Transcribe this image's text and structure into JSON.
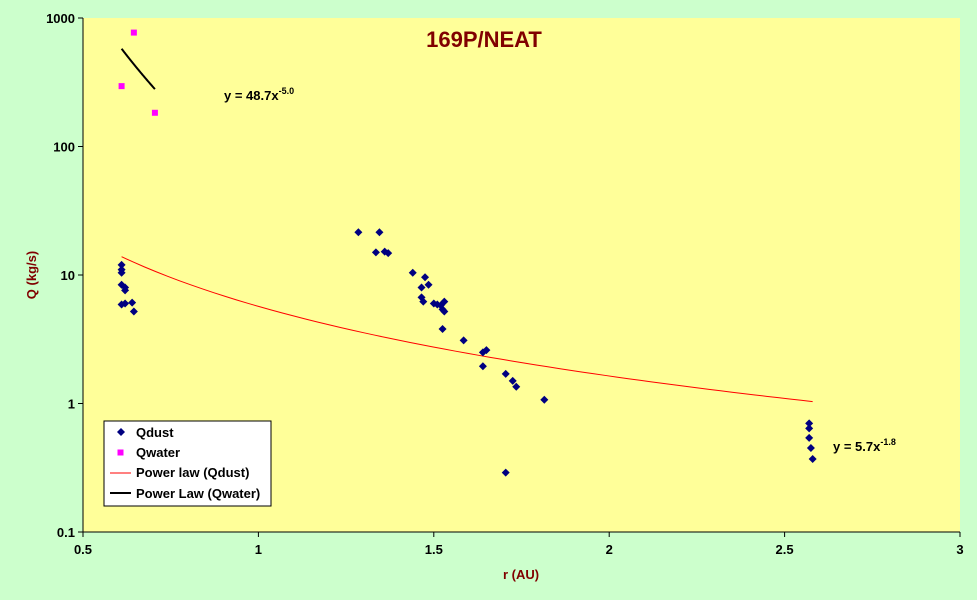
{
  "chart_data": {
    "type": "scatter",
    "title": "169P/NEAT",
    "xlabel": "r (AU)",
    "ylabel": "Q (kg/s)",
    "xlim": [
      0.5,
      3
    ],
    "ylim": [
      0.1,
      1000
    ],
    "yscale": "log",
    "grid": false,
    "x_ticks": [
      "0.5",
      "1",
      "1.5",
      "2",
      "2.5",
      "3"
    ],
    "y_ticks": [
      "0.1",
      "1",
      "10",
      "100",
      "1000"
    ],
    "legend_position": "bottom-left",
    "colors": {
      "plot_background": "#ffff99",
      "page_background": "#ccffcc",
      "qdust": "#000080",
      "qwater": "#ff00ff",
      "power_dust": "#ff0000",
      "power_water": "#000000",
      "title": "#800000"
    },
    "series": [
      {
        "name": "Qdust",
        "kind": "scatter",
        "points": [
          [
            0.61,
            12.0
          ],
          [
            0.61,
            11.0
          ],
          [
            0.61,
            10.4
          ],
          [
            0.61,
            8.4
          ],
          [
            0.62,
            8.0
          ],
          [
            0.62,
            7.6
          ],
          [
            0.61,
            5.9
          ],
          [
            0.62,
            6.0
          ],
          [
            0.64,
            6.1
          ],
          [
            0.645,
            5.2
          ],
          [
            1.285,
            21.5
          ],
          [
            1.335,
            15.0
          ],
          [
            1.345,
            21.5
          ],
          [
            1.36,
            15.2
          ],
          [
            1.37,
            14.8
          ],
          [
            1.44,
            10.4
          ],
          [
            1.465,
            8.0
          ],
          [
            1.465,
            6.7
          ],
          [
            1.47,
            6.2
          ],
          [
            1.475,
            9.6
          ],
          [
            1.485,
            8.4
          ],
          [
            1.5,
            6.0
          ],
          [
            1.51,
            5.9
          ],
          [
            1.52,
            5.8
          ],
          [
            1.525,
            5.4
          ],
          [
            1.53,
            6.2
          ],
          [
            1.53,
            5.2
          ],
          [
            1.525,
            3.8
          ],
          [
            1.585,
            3.1
          ],
          [
            1.64,
            2.5
          ],
          [
            1.65,
            2.6
          ],
          [
            1.64,
            1.95
          ],
          [
            1.705,
            1.7
          ],
          [
            1.725,
            1.5
          ],
          [
            1.735,
            1.35
          ],
          [
            1.705,
            0.29
          ],
          [
            1.815,
            1.07
          ],
          [
            2.57,
            0.7
          ],
          [
            2.57,
            0.64
          ],
          [
            2.57,
            0.54
          ],
          [
            2.575,
            0.45
          ],
          [
            2.58,
            0.37
          ]
        ]
      },
      {
        "name": "Qwater",
        "kind": "scatter",
        "points": [
          [
            0.645,
            770
          ],
          [
            0.61,
            295
          ],
          [
            0.705,
            183
          ]
        ]
      },
      {
        "name": "Power law (Qdust)",
        "kind": "line",
        "equation": "y = 5.7x^-1.8",
        "x_range": [
          0.61,
          2.58
        ]
      },
      {
        "name": "Power Law (Qwater)",
        "kind": "line",
        "equation": "y = 48.7x^-5.0",
        "x_range": [
          0.61,
          0.705
        ]
      }
    ],
    "annotations": {
      "water_fit": {
        "base": "y = 48.7x",
        "exp": "-5.0"
      },
      "dust_fit": {
        "base": "y = 5.7x",
        "exp": "-1.8"
      }
    }
  }
}
